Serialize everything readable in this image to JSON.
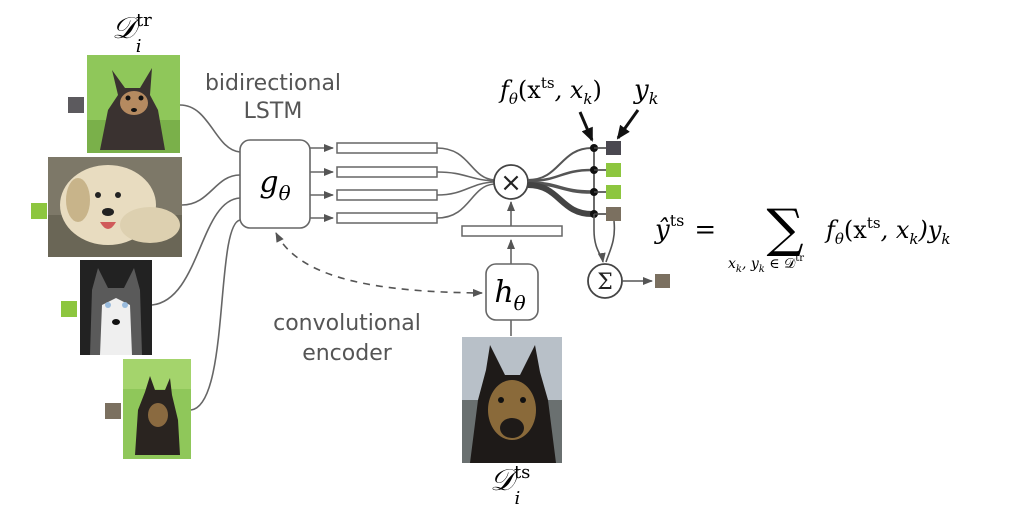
{
  "support_set_label": {
    "base": "𝒟",
    "sup": "tr",
    "sub": "i"
  },
  "query_set_label": {
    "base": "𝒟",
    "sup": "ts",
    "sub": "i"
  },
  "lstm_caption": {
    "line1": "bidirectional",
    "line2": "LSTM"
  },
  "encoder_caption": {
    "line1": "convolutional",
    "line2": "encoder"
  },
  "g_block": {
    "main": "g",
    "sub": "θ"
  },
  "h_block": {
    "main": "h",
    "sub": "θ"
  },
  "multiply_symbol": "×",
  "sum_symbol": "Σ",
  "f_label": {
    "f": "f",
    "sub": "θ",
    "open": "(x",
    "sup": "ts",
    "rest": ", x",
    "k": "k",
    "close": ")"
  },
  "y_label": {
    "main": "y",
    "sub": "k"
  },
  "equation": {
    "lhs": "ŷ",
    "lhs_sup": "ts",
    "eq": "=",
    "sum": "∑",
    "limits": "x",
    "limits_k": "k",
    "limits_mid": ", y",
    "limits_k2": "k",
    "limits_in": " ∈ 𝒟",
    "limits_sup": "tr",
    "f": "f",
    "f_sub": "θ",
    "open": "(x",
    "sup": "ts",
    "mid": ", x",
    "k": "k",
    "close": ")y",
    "k2": "k"
  },
  "support_images": [
    {
      "name": "chihuahua",
      "label_color": "#5c5a5e"
    },
    {
      "name": "labrador",
      "label_color": "#8dc63f"
    },
    {
      "name": "husky",
      "label_color": "#8dc63f"
    },
    {
      "name": "shepherd",
      "label_color": "#7b7060"
    }
  ],
  "output_labels": [
    "#4a4850",
    "#8dc63f",
    "#8dc63f",
    "#7b7060"
  ],
  "result_color": "#7b7060",
  "colors": {
    "line": "#666666",
    "dark": "#222222",
    "grass": "#8fc75a"
  }
}
